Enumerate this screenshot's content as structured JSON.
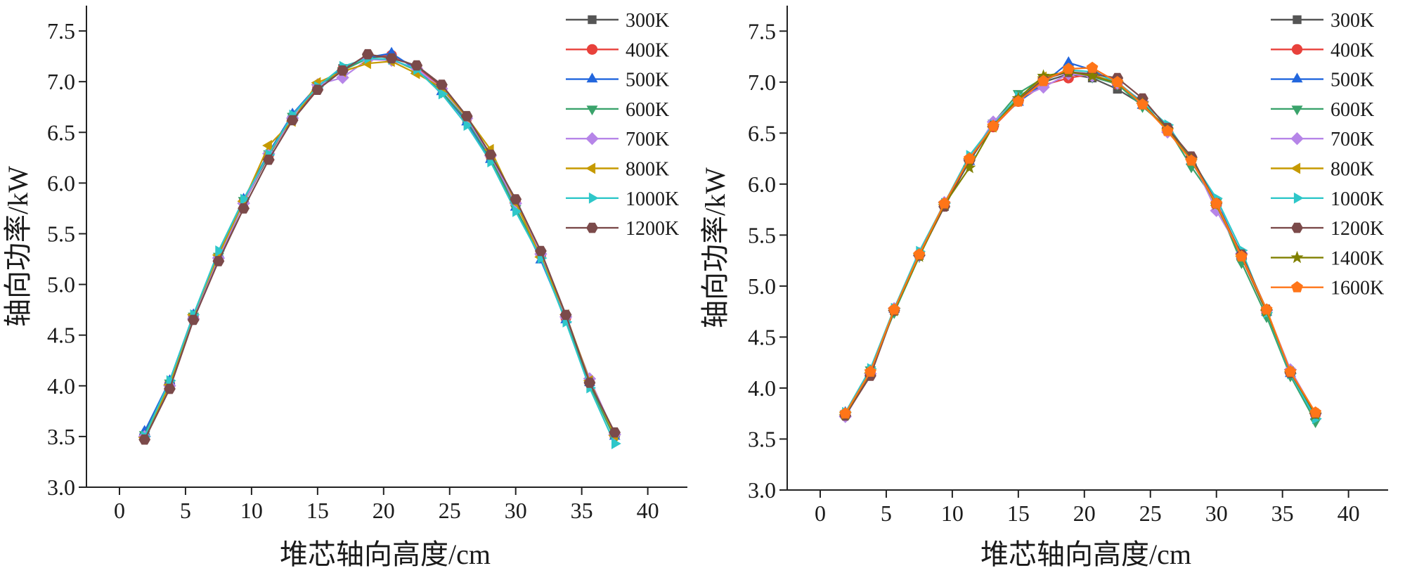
{
  "chart_data": [
    {
      "type": "line",
      "xlabel": "堆芯轴向高度/cm",
      "ylabel": "轴向功率/kW",
      "xlim": [
        -2.5,
        43
      ],
      "ylim": [
        3.0,
        7.75
      ],
      "xticks": [
        0,
        5,
        10,
        15,
        20,
        25,
        30,
        35,
        40
      ],
      "yticks": [
        3.0,
        3.5,
        4.0,
        4.5,
        5.0,
        5.5,
        6.0,
        6.5,
        7.0,
        7.5
      ],
      "x": [
        1.9,
        3.8,
        5.6,
        7.5,
        9.4,
        11.3,
        13.1,
        15.0,
        16.9,
        18.8,
        20.6,
        22.5,
        24.4,
        26.3,
        28.1,
        30.0,
        31.9,
        33.8,
        35.6,
        37.5
      ],
      "legend_position": "top-right",
      "series": [
        {
          "name": "300K",
          "color": "#555555",
          "marker": "square",
          "values": [
            3.5,
            4.01,
            4.67,
            5.25,
            5.8,
            6.27,
            6.65,
            6.95,
            7.13,
            7.24,
            7.25,
            7.15,
            6.95,
            6.63,
            6.25,
            5.8,
            5.3,
            4.68,
            4.04,
            3.52
          ]
        },
        {
          "name": "400K",
          "color": "#e8413b",
          "marker": "circle",
          "values": [
            3.51,
            4.02,
            4.68,
            5.26,
            5.81,
            6.28,
            6.64,
            6.94,
            7.12,
            7.25,
            7.26,
            7.14,
            6.94,
            6.64,
            6.27,
            5.81,
            5.29,
            4.67,
            4.03,
            3.51
          ]
        },
        {
          "name": "500K",
          "color": "#2266dd",
          "marker": "triangle-up",
          "values": [
            3.55,
            4.05,
            4.7,
            5.3,
            5.84,
            6.3,
            6.68,
            6.96,
            7.12,
            7.24,
            7.28,
            7.12,
            6.9,
            6.6,
            6.23,
            5.76,
            5.24,
            4.65,
            4.03,
            3.5
          ]
        },
        {
          "name": "600K",
          "color": "#3aa36b",
          "marker": "triangle-down",
          "values": [
            3.52,
            4.03,
            4.69,
            5.28,
            5.83,
            6.29,
            6.66,
            6.95,
            7.11,
            7.23,
            7.22,
            7.11,
            6.9,
            6.62,
            6.24,
            5.75,
            5.28,
            4.66,
            4.01,
            3.48
          ]
        },
        {
          "name": "700K",
          "color": "#b685e8",
          "marker": "diamond",
          "values": [
            3.5,
            4.0,
            4.66,
            5.26,
            5.8,
            6.29,
            6.64,
            6.97,
            7.04,
            7.22,
            7.21,
            7.13,
            6.93,
            6.64,
            6.27,
            5.8,
            5.3,
            4.68,
            4.07,
            3.52
          ]
        },
        {
          "name": "800K",
          "color": "#c69a00",
          "marker": "triangle-left",
          "values": [
            3.49,
            4.01,
            4.7,
            5.29,
            5.82,
            6.37,
            6.61,
            6.99,
            7.1,
            7.18,
            7.2,
            7.08,
            6.94,
            6.65,
            6.33,
            5.81,
            5.27,
            4.7,
            4.05,
            3.51
          ]
        },
        {
          "name": "1000K",
          "color": "#2ec7c9",
          "marker": "triangle-right",
          "values": [
            3.5,
            4.05,
            4.7,
            5.33,
            5.84,
            6.28,
            6.67,
            6.95,
            7.15,
            7.23,
            7.22,
            7.12,
            6.88,
            6.57,
            6.21,
            5.72,
            5.26,
            4.63,
            3.98,
            3.43
          ]
        },
        {
          "name": "1200K",
          "color": "#7b4a4a",
          "marker": "hexagon",
          "values": [
            3.47,
            3.97,
            4.65,
            5.23,
            5.75,
            6.23,
            6.62,
            6.92,
            7.11,
            7.27,
            7.23,
            7.16,
            6.97,
            6.66,
            6.28,
            5.84,
            5.33,
            4.7,
            4.03,
            3.54
          ]
        }
      ]
    },
    {
      "type": "line",
      "xlabel": "堆芯轴向高度/cm",
      "ylabel": "轴向功率/kW",
      "xlim": [
        -2.5,
        43
      ],
      "ylim": [
        3.0,
        7.75
      ],
      "xticks": [
        0,
        5,
        10,
        15,
        20,
        25,
        30,
        35,
        40
      ],
      "yticks": [
        3.0,
        3.5,
        4.0,
        4.5,
        5.0,
        5.5,
        6.0,
        6.5,
        7.0,
        7.5
      ],
      "x": [
        1.9,
        3.8,
        5.6,
        7.5,
        9.4,
        11.3,
        13.1,
        15.0,
        16.9,
        18.8,
        20.6,
        22.5,
        24.4,
        26.3,
        28.1,
        30.0,
        31.9,
        33.8,
        35.6,
        37.5
      ],
      "legend_position": "top-right",
      "series": [
        {
          "name": "300K",
          "color": "#555555",
          "marker": "square",
          "values": [
            3.74,
            4.14,
            4.76,
            5.3,
            5.78,
            6.23,
            6.57,
            6.82,
            7.0,
            7.08,
            7.04,
            6.93,
            6.78,
            6.53,
            6.23,
            5.8,
            5.29,
            4.75,
            4.16,
            3.74
          ]
        },
        {
          "name": "400K",
          "color": "#e8413b",
          "marker": "circle",
          "values": [
            3.75,
            4.15,
            4.77,
            5.31,
            5.79,
            6.24,
            6.56,
            6.81,
            6.97,
            7.04,
            7.08,
            6.98,
            6.79,
            6.52,
            6.24,
            5.79,
            5.28,
            4.74,
            4.15,
            3.74
          ]
        },
        {
          "name": "500K",
          "color": "#2266dd",
          "marker": "triangle-up",
          "values": [
            3.76,
            4.17,
            4.77,
            5.32,
            5.8,
            6.22,
            6.59,
            6.8,
            6.99,
            7.19,
            7.12,
            6.98,
            6.77,
            6.55,
            6.22,
            5.83,
            5.3,
            4.74,
            4.14,
            3.72
          ]
        },
        {
          "name": "600K",
          "color": "#3aa36b",
          "marker": "triangle-down",
          "values": [
            3.75,
            4.18,
            4.74,
            5.29,
            5.79,
            6.22,
            6.6,
            6.89,
            7.04,
            7.1,
            7.05,
            6.98,
            6.76,
            6.55,
            6.17,
            5.82,
            5.23,
            4.7,
            4.12,
            3.67
          ]
        },
        {
          "name": "700K",
          "color": "#b685e8",
          "marker": "diamond",
          "values": [
            3.72,
            4.14,
            4.78,
            5.3,
            5.82,
            6.24,
            6.61,
            6.84,
            6.95,
            7.08,
            7.06,
            6.99,
            6.81,
            6.51,
            6.26,
            5.74,
            5.32,
            4.76,
            4.18,
            3.75
          ]
        },
        {
          "name": "800K",
          "color": "#c69a00",
          "marker": "triangle-left",
          "values": [
            3.74,
            4.15,
            4.76,
            5.32,
            5.8,
            6.25,
            6.56,
            6.83,
            7.05,
            7.1,
            7.07,
            6.99,
            6.79,
            6.53,
            6.24,
            5.79,
            5.29,
            4.76,
            4.16,
            3.75
          ]
        },
        {
          "name": "1000K",
          "color": "#2ec7c9",
          "marker": "triangle-right",
          "values": [
            3.76,
            4.19,
            4.78,
            5.34,
            5.81,
            6.28,
            6.58,
            6.86,
            7.01,
            7.12,
            7.1,
            7.0,
            6.8,
            6.58,
            6.24,
            5.86,
            5.35,
            4.74,
            4.14,
            3.7
          ]
        },
        {
          "name": "1200K",
          "color": "#7b4a4a",
          "marker": "hexagon",
          "values": [
            3.73,
            4.12,
            4.76,
            5.3,
            5.78,
            6.23,
            6.57,
            6.82,
            7.03,
            7.1,
            7.08,
            7.04,
            6.84,
            6.55,
            6.27,
            5.81,
            5.31,
            4.77,
            4.15,
            3.75
          ]
        },
        {
          "name": "1400K",
          "color": "#808000",
          "marker": "star",
          "values": [
            3.74,
            4.16,
            4.76,
            5.29,
            5.8,
            6.16,
            6.57,
            6.84,
            7.06,
            7.1,
            7.06,
            6.99,
            6.79,
            6.53,
            6.24,
            5.8,
            5.29,
            4.75,
            4.16,
            3.74
          ]
        },
        {
          "name": "1600K",
          "color": "#ff7518",
          "marker": "pentagon",
          "values": [
            3.75,
            4.16,
            4.77,
            5.31,
            5.81,
            6.25,
            6.57,
            6.81,
            7.01,
            7.13,
            7.14,
            7.0,
            6.78,
            6.52,
            6.23,
            5.81,
            5.29,
            4.77,
            4.16,
            3.76
          ]
        }
      ]
    }
  ]
}
